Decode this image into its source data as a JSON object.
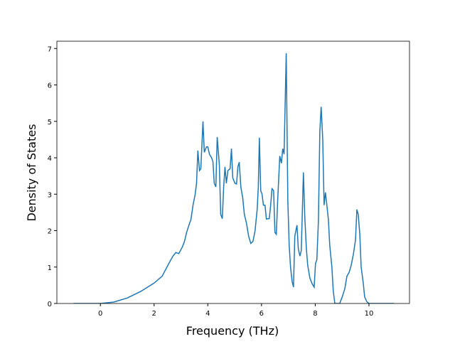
{
  "chart_data": {
    "type": "line",
    "xlabel": "Frequency (THz)",
    "ylabel": "Density of States",
    "xlim": [
      -1.62,
      11.51
    ],
    "ylim": [
      0,
      7.2
    ],
    "xticks": [
      0,
      2,
      4,
      6,
      8,
      10
    ],
    "yticks": [
      0,
      1,
      2,
      3,
      4,
      5,
      6,
      7
    ],
    "grid": false,
    "x": [
      -1,
      0,
      0.5,
      1,
      1.5,
      2,
      2.3,
      2.55,
      2.7,
      2.81,
      2.92,
      3.05,
      3.13,
      3.21,
      3.32,
      3.37,
      3.45,
      3.53,
      3.58,
      3.63,
      3.69,
      3.74,
      3.82,
      3.87,
      3.95,
      4.0,
      4.06,
      4.14,
      4.19,
      4.24,
      4.3,
      4.35,
      4.43,
      4.48,
      4.54,
      4.59,
      4.64,
      4.69,
      4.75,
      4.83,
      4.88,
      4.93,
      5.01,
      5.07,
      5.12,
      5.17,
      5.23,
      5.3,
      5.36,
      5.44,
      5.52,
      5.6,
      5.68,
      5.76,
      5.84,
      5.88,
      5.92,
      5.97,
      6.02,
      6.07,
      6.13,
      6.18,
      6.29,
      6.34,
      6.39,
      6.45,
      6.5,
      6.55,
      6.6,
      6.68,
      6.74,
      6.79,
      6.84,
      6.92,
      6.98,
      7.03,
      7.08,
      7.14,
      7.19,
      7.24,
      7.32,
      7.37,
      7.43,
      7.48,
      7.56,
      7.61,
      7.67,
      7.72,
      7.8,
      7.88,
      7.96,
      8.01,
      8.06,
      8.12,
      8.17,
      8.22,
      8.28,
      8.33,
      8.38,
      8.44,
      8.49,
      8.54,
      8.62,
      8.67,
      8.73,
      8.91,
      8.99,
      9.1,
      9.18,
      9.26,
      9.34,
      9.42,
      9.5,
      9.55,
      9.6,
      9.66,
      9.71,
      9.79,
      9.84,
      9.92,
      10.0,
      10.93
    ],
    "series": [
      {
        "name": "DOS",
        "color": "#1f77b4",
        "values": [
          0,
          0,
          0.04,
          0.15,
          0.33,
          0.56,
          0.75,
          1.1,
          1.3,
          1.4,
          1.37,
          1.55,
          1.7,
          1.95,
          2.2,
          2.3,
          2.7,
          3.0,
          3.3,
          4.2,
          3.65,
          3.7,
          5.0,
          4.15,
          4.3,
          4.3,
          4.1,
          4.0,
          3.9,
          3.3,
          3.2,
          4.57,
          3.8,
          2.45,
          2.33,
          3.2,
          3.75,
          3.3,
          3.65,
          3.7,
          4.25,
          3.45,
          3.3,
          3.28,
          3.75,
          3.88,
          3.2,
          2.9,
          2.45,
          2.2,
          1.85,
          1.65,
          1.7,
          2.0,
          2.6,
          3.2,
          4.55,
          3.1,
          3.0,
          2.7,
          2.7,
          2.32,
          2.33,
          2.7,
          3.15,
          3.1,
          1.95,
          1.9,
          2.8,
          4.05,
          3.85,
          4.25,
          4.1,
          6.87,
          2.8,
          1.6,
          1.0,
          0.6,
          0.45,
          1.85,
          2.15,
          1.5,
          1.3,
          1.45,
          3.6,
          2.4,
          1.5,
          1.05,
          0.7,
          0.55,
          0.45,
          1.1,
          1.2,
          2.3,
          4.7,
          5.4,
          4.5,
          2.7,
          3.05,
          2.65,
          2.3,
          1.6,
          1.0,
          0.35,
          0,
          0,
          0.15,
          0.4,
          0.75,
          0.85,
          1.05,
          1.35,
          1.75,
          2.58,
          2.45,
          1.9,
          1.0,
          0.55,
          0.18,
          0.05,
          0,
          0
        ]
      }
    ]
  }
}
